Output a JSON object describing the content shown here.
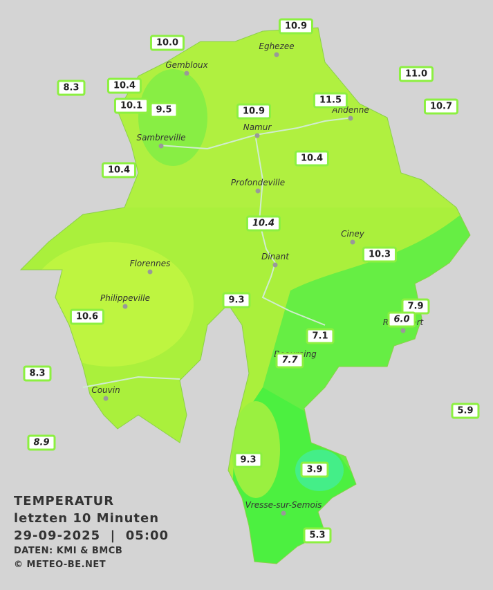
{
  "title": {
    "line1": "TEMPERATUR",
    "line2": "letzten 10 Minuten",
    "line3": "29-09-2025  |  05:00",
    "source": "DATEN: KMI & BMCB",
    "copyright": "© METEO-BE.NET"
  },
  "places": [
    "Eghezee",
    "Gembloux",
    "Andenne",
    "Namur",
    "Sambreville",
    "Profondeville",
    "Ciney",
    "Dinant",
    "Florennes",
    "Philippeville",
    "Rochefort",
    "Beauraing",
    "Couvin",
    "Vresse-sur-Semois"
  ],
  "stations": [
    "10.9",
    "10.0",
    "8.3",
    "10.4",
    "10.1",
    "9.5",
    "10.9",
    "11.5",
    "11.0",
    "10.7",
    "10.4",
    "10.4",
    "10.4",
    "10.3",
    "9.3",
    "7.9",
    "6.0",
    "10.6",
    "7.1",
    "7.7",
    "8.3",
    "5.9",
    "8.9",
    "9.3",
    "3.9",
    "5.3"
  ]
}
